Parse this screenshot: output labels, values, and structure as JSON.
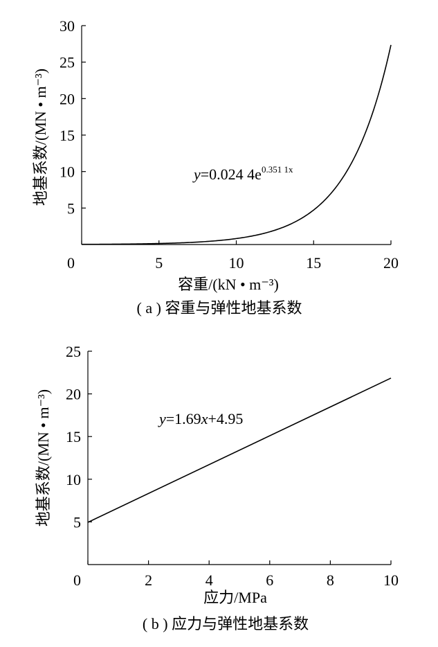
{
  "chart_data": [
    {
      "type": "line",
      "caption": "( a ) 容重与弹性地基系数",
      "xlabel": "容重/(kN • m⁻³)",
      "ylabel": "地基系数/(MN • m⁻³)",
      "xlim": [
        0,
        20
      ],
      "ylim": [
        0,
        30
      ],
      "x_ticks": [
        0,
        5,
        10,
        15,
        20
      ],
      "y_ticks": [
        5,
        10,
        15,
        20,
        25,
        30
      ],
      "equation": {
        "prefix": "y",
        "body": "=0.024 4e",
        "exponent": "0.351 1x"
      },
      "series": [
        {
          "x": [
            0,
            2,
            4,
            6,
            8,
            10,
            11,
            12,
            13,
            14,
            15,
            16,
            17,
            18,
            19,
            20
          ],
          "values": [
            0.024,
            0.049,
            0.1,
            0.2,
            0.4,
            0.82,
            1.17,
            1.66,
            2.35,
            3.35,
            4.75,
            6.75,
            9.6,
            13.6,
            19.4,
            27.5
          ]
        }
      ],
      "grid": false
    },
    {
      "type": "line",
      "caption": "( b ) 应力与弹性地基系数",
      "xlabel": "应力/MPa",
      "ylabel": "地基系数/(MN • m⁻³)",
      "xlim": [
        0,
        10
      ],
      "ylim": [
        0,
        25
      ],
      "x_ticks": [
        0,
        2,
        4,
        6,
        8,
        10
      ],
      "y_ticks": [
        5,
        10,
        15,
        20,
        25
      ],
      "equation": {
        "prefix": "y",
        "body": "=1.69",
        "xvar": "x",
        "suffix": "+4.95"
      },
      "series": [
        {
          "x": [
            0,
            10
          ],
          "values": [
            4.95,
            21.85
          ]
        }
      ],
      "grid": false
    }
  ]
}
